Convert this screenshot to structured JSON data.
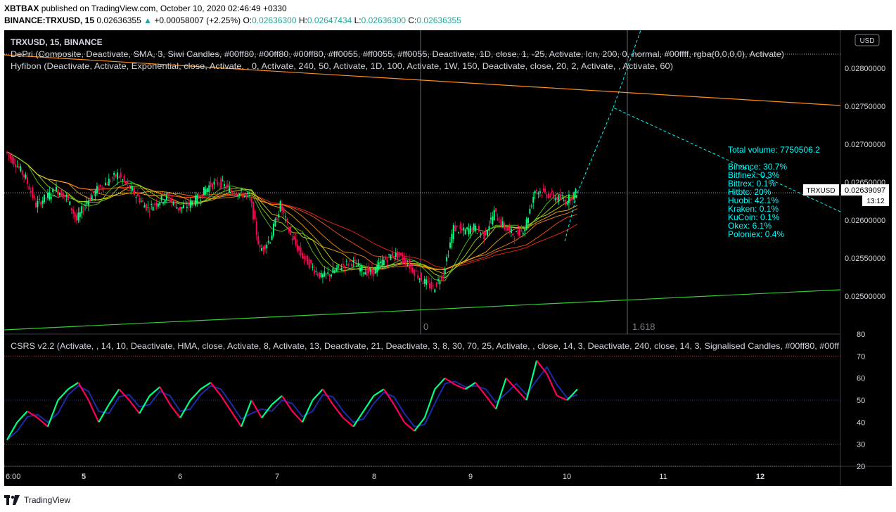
{
  "header": {
    "publisher": "XBTBAX",
    "published_text": "published on TradingView.com, October 10, 2020 02:46:49 +0330",
    "symbol": "BINANCE:TRXUSD, 15",
    "price": "0.02636355",
    "change": "+0.00058007 (+2.25%)",
    "o_label": "O:",
    "o": "0.02636300",
    "h_label": "H:",
    "h": "0.02647434",
    "l_label": "L:",
    "l": "0.02636300",
    "c_label": "C:",
    "c": "0.02636355"
  },
  "legend": {
    "symbol_line": "TRXUSD, 15, BINANCE",
    "depri": "DePri (Composite, Deactivate, SMA, 3, Siwi Candles, #00ff80, #00ff80, #00ff80, #ff0055, #ff0055, #ff0055, Deactivate, 1D, close, 1, -25, Activate, lcn, 200, 0, normal, #00ffff, rgba(0,0,0,0), Activate)",
    "hyfibon": "Hyfibon (Deactivate, Activate, Exponential, close, Activate, , 0, Activate, 240, 50, Activate, 1D, 100, Activate, 1W, 150, Deactivate, close, 20, 2, Activate, , Activate, 60)",
    "csrs": "CSRS v2.2 (Activate, , 14, 10, Deactivate, HMA, close, Activate, 8, Activate, 13, Deactivate, 21, Deactivate, 3, 8, 30, 70, 25, Activate, , close, 14, 3, Deactivate, 240, close, 14, 3, Signalised Candles, #00ff80, #00ff"
  },
  "volume_panel": {
    "total": "Total volume: 7750506.2",
    "exchanges": [
      "Binance: 30.7%",
      "Bitfinex: 0.3%",
      "Bittrex: 0.1%",
      "Hitbtc: 20%",
      "Huobi: 42.1%",
      "Kraken: 0.1%",
      "KuCoin: 0.1%",
      "Okex: 6.1%",
      "Poloniex: 0.4%"
    ]
  },
  "price_axis": {
    "currency": "USD",
    "ticks": [
      "0.02800000",
      "0.02750000",
      "0.02700000",
      "0.02650000",
      "0.02600000",
      "0.02550000",
      "0.02500000"
    ],
    "last_label": "TRXUSD",
    "last_price": "0.02639097",
    "countdown": "13:12"
  },
  "fib_labels": [
    "0",
    "1.618"
  ],
  "osc_axis": {
    "ticks": [
      "80",
      "70",
      "60",
      "50",
      "40",
      "30",
      "20"
    ]
  },
  "time_axis": {
    "ticks": [
      "6:00",
      "5",
      "6",
      "7",
      "8",
      "9",
      "10",
      "11",
      "12"
    ]
  },
  "footer": {
    "brand": "TradingView"
  },
  "chart_data": {
    "type": "line",
    "title": "TRXUSD, 15, BINANCE",
    "price_series_close": [
      0.0269,
      0.02675,
      0.02655,
      0.0262,
      0.0263,
      0.0264,
      0.0263,
      0.026,
      0.02625,
      0.0264,
      0.0265,
      0.0266,
      0.02645,
      0.0263,
      0.02615,
      0.02625,
      0.0263,
      0.02615,
      0.0262,
      0.0263,
      0.02645,
      0.0265,
      0.0264,
      0.02635,
      0.0263,
      0.0256,
      0.02575,
      0.0262,
      0.0258,
      0.02555,
      0.0254,
      0.02525,
      0.0253,
      0.0254,
      0.02545,
      0.02535,
      0.0253,
      0.02545,
      0.02555,
      0.0255,
      0.02535,
      0.0252,
      0.0251,
      0.0253,
      0.0259,
      0.02585,
      0.0259,
      0.0258,
      0.0261,
      0.0259,
      0.0258,
      0.0259,
      0.0264,
      0.02635,
      0.0263,
      0.02625,
      0.02636
    ],
    "price_ylim": [
      0.0245,
      0.0285
    ],
    "oscillator_series": [
      32,
      40,
      45,
      42,
      38,
      50,
      55,
      58,
      50,
      40,
      48,
      55,
      50,
      44,
      52,
      56,
      48,
      42,
      50,
      55,
      58,
      52,
      45,
      38,
      50,
      42,
      48,
      52,
      45,
      40,
      50,
      55,
      48,
      42,
      38,
      45,
      52,
      55,
      48,
      40,
      36,
      42,
      55,
      60,
      57,
      55,
      58,
      52,
      46,
      60,
      55,
      50,
      68,
      62,
      52,
      50,
      55
    ],
    "oscillator_ylim": [
      20,
      80
    ],
    "oscillator_levels": [
      30,
      50,
      70
    ],
    "x_ticks": [
      "6:00",
      "5",
      "6",
      "7",
      "8",
      "9",
      "10",
      "11",
      "12"
    ],
    "colors": {
      "bull": "#00ff80",
      "bear": "#ff0055",
      "fib_projection": "#00ffff",
      "trend_upper": "#ff8c1a",
      "trend_lower": "#33cc33",
      "osc_line": "#1e2aa8"
    },
    "grid": false
  }
}
